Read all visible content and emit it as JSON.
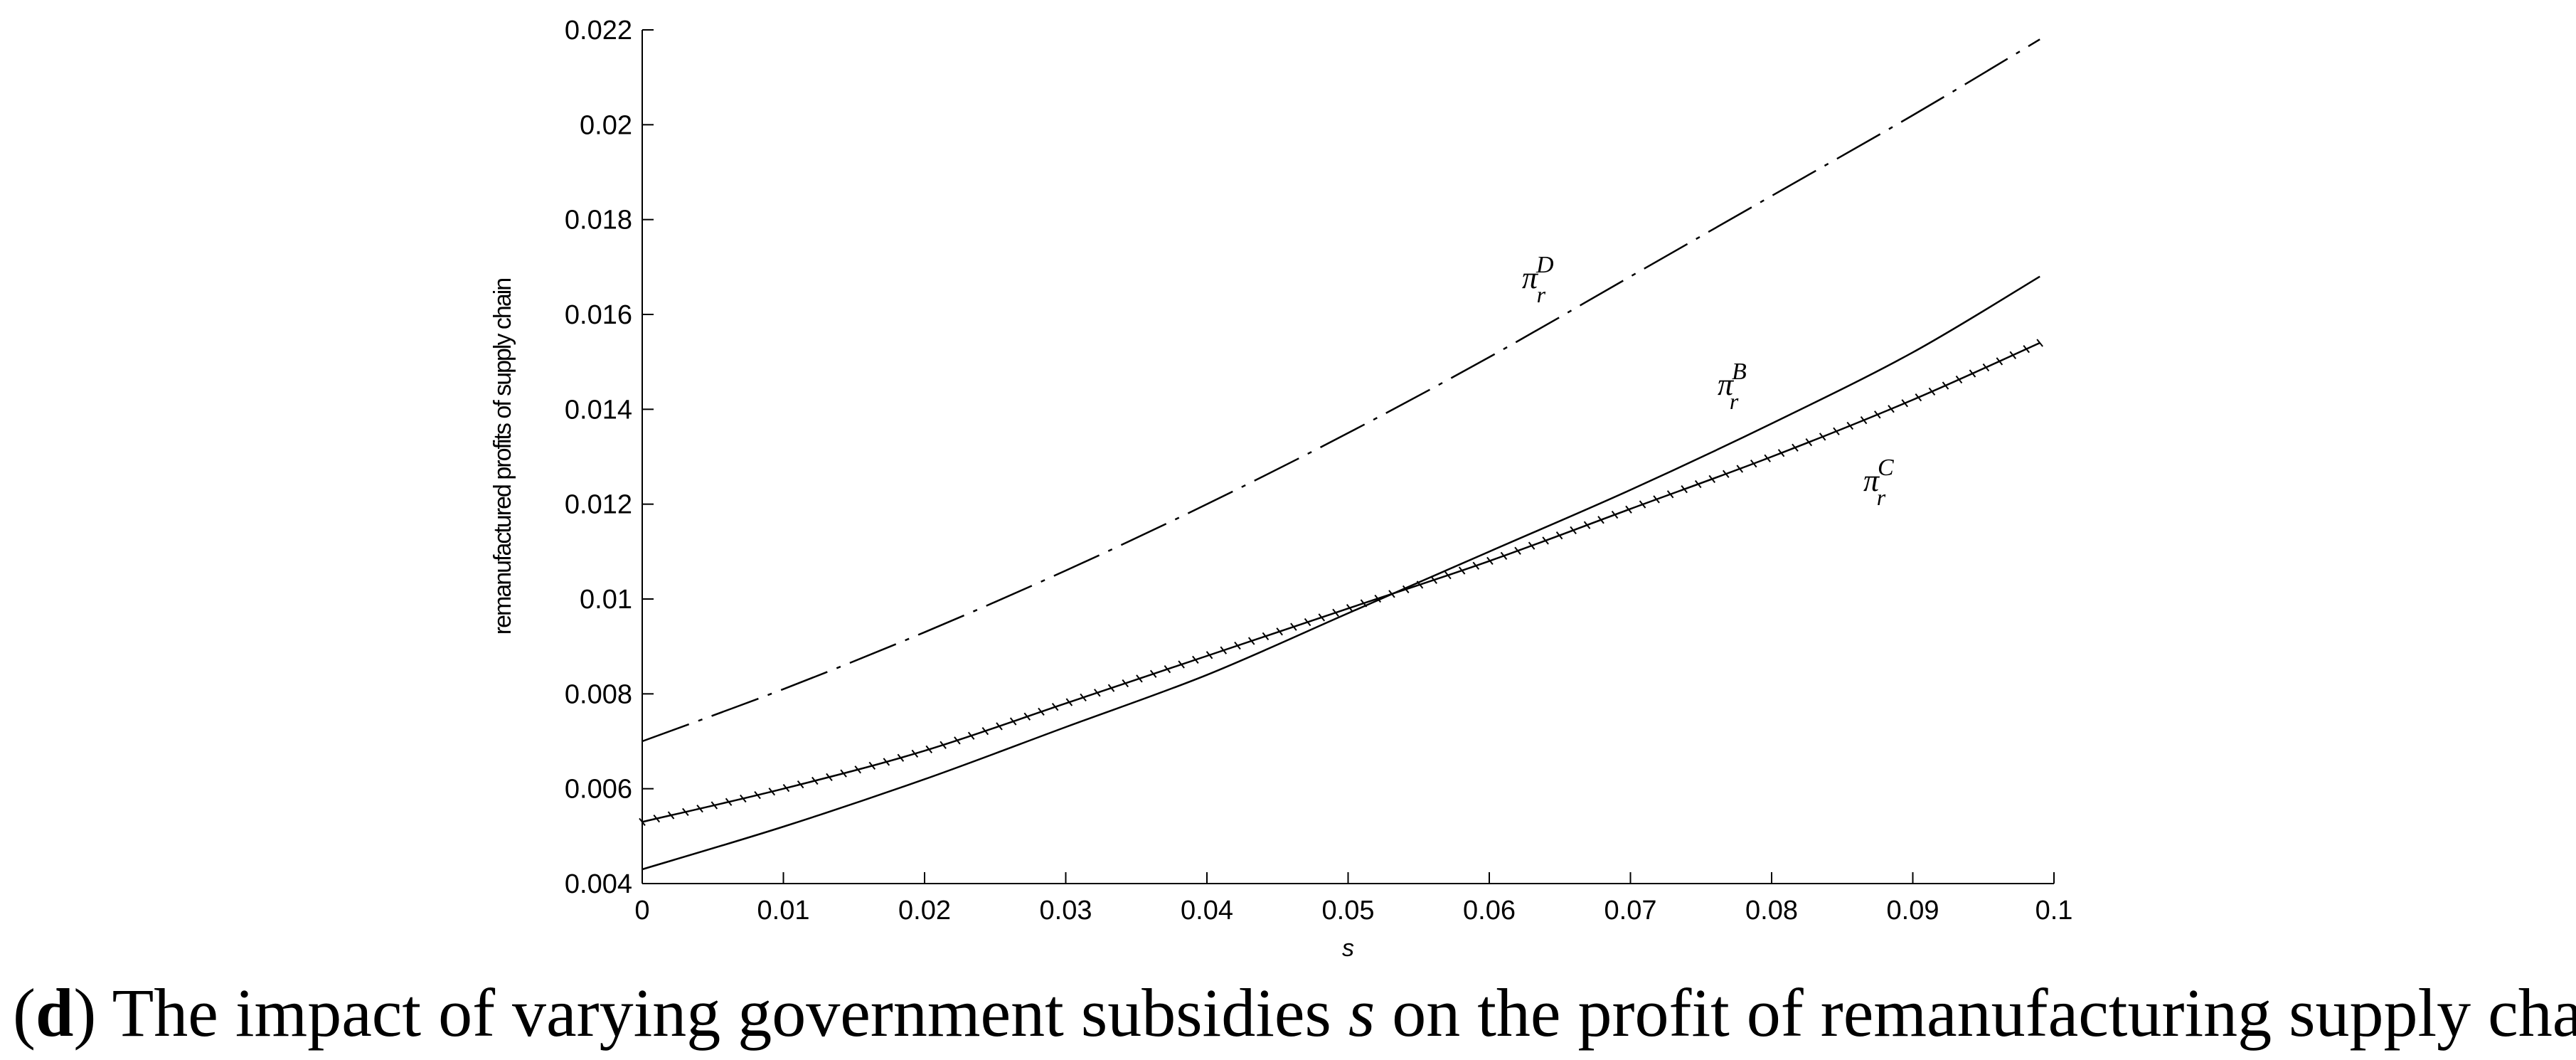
{
  "chart_data": {
    "type": "line",
    "xlabel": "s",
    "ylabel": "remanufactured profits of supply chain",
    "xlim": [
      0,
      0.1
    ],
    "ylim": [
      0.004,
      0.022
    ],
    "x_ticks": [
      "0",
      "0.01",
      "0.02",
      "0.03",
      "0.04",
      "0.05",
      "0.06",
      "0.07",
      "0.08",
      "0.09",
      "0.1"
    ],
    "y_ticks": [
      "0.004",
      "0.006",
      "0.008",
      "0.01",
      "0.012",
      "0.014",
      "0.016",
      "0.018",
      "0.02",
      "0.022"
    ],
    "grid": false,
    "series": [
      {
        "name": "π_r^D",
        "label_base": "π",
        "label_sub": "r",
        "label_sup": "D",
        "style": "dash-dot",
        "x": [
          0,
          0.01,
          0.02,
          0.03,
          0.04,
          0.05,
          0.06,
          0.07,
          0.08,
          0.09,
          0.099
        ],
        "values": [
          0.007,
          0.0081,
          0.0093,
          0.0106,
          0.012,
          0.0135,
          0.0151,
          0.0168,
          0.0185,
          0.0202,
          0.0218
        ]
      },
      {
        "name": "π_r^B",
        "label_base": "π",
        "label_sub": "r",
        "label_sup": "B",
        "style": "solid",
        "x": [
          0,
          0.01,
          0.02,
          0.03,
          0.04,
          0.05,
          0.06,
          0.07,
          0.08,
          0.09,
          0.099
        ],
        "values": [
          0.0043,
          0.0052,
          0.0062,
          0.0073,
          0.0084,
          0.0097,
          0.011,
          0.0123,
          0.0137,
          0.0152,
          0.0168
        ]
      },
      {
        "name": "π_r^C",
        "label_base": "π",
        "label_sub": "r",
        "label_sup": "C",
        "style": "solid-dots",
        "x": [
          0,
          0.01,
          0.02,
          0.03,
          0.04,
          0.05,
          0.06,
          0.07,
          0.08,
          0.09,
          0.099
        ],
        "values": [
          0.0053,
          0.006,
          0.0068,
          0.0078,
          0.0088,
          0.0098,
          0.0108,
          0.0119,
          0.013,
          0.0142,
          0.0154
        ]
      }
    ]
  },
  "caption": {
    "letter": "d",
    "text_before": " The impact of varying government subsidies ",
    "variable": "s",
    "text_after": " on the profit of remanufacturing supply chain"
  }
}
